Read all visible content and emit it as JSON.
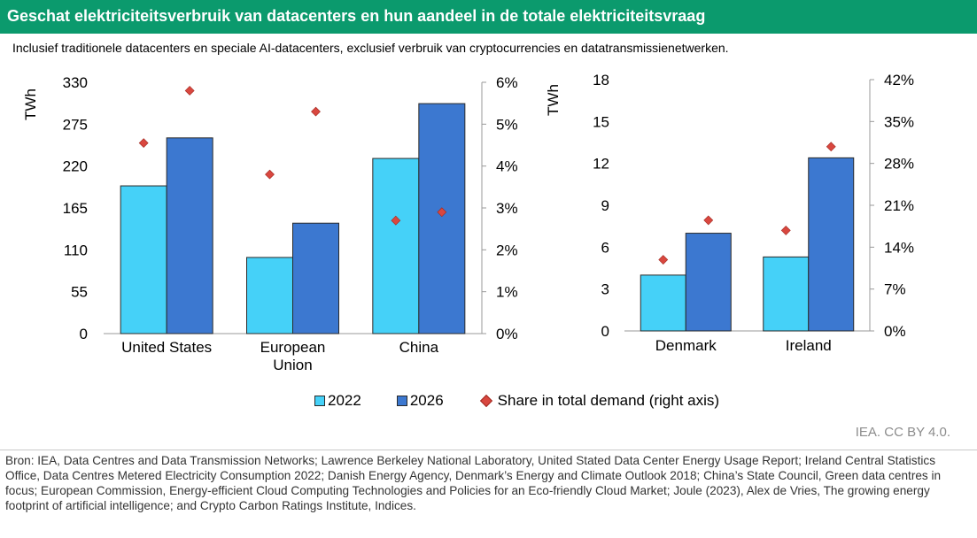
{
  "header": {
    "title": "Geschat elektriciteitsverbruik van datacenters en hun aandeel in de totale elektriciteitsvraag",
    "subtitle": "Inclusief traditionele datacenters en speciale AI-datacenters, exclusief verbruik van cryptocurrencies en datatransmissienetwerken."
  },
  "colors": {
    "bar2022": "#45d1f8",
    "bar2026": "#3c78d0",
    "share": "#d9473f",
    "title_bg": "#0b9a6d"
  },
  "chart_data": [
    {
      "type": "bar",
      "title": "",
      "ylabel": "TWh",
      "ylim": [
        0,
        330
      ],
      "yticks": [
        "0",
        "55",
        "110",
        "165",
        "220",
        "275",
        "330"
      ],
      "y2lim": [
        0,
        6
      ],
      "y2ticks": [
        "0%",
        "1%",
        "2%",
        "3%",
        "4%",
        "5%",
        "6%"
      ],
      "categories": [
        [
          "United States"
        ],
        [
          "European",
          "Union"
        ],
        [
          "China"
        ]
      ],
      "series": [
        {
          "name": "2022",
          "values": [
            194,
            100,
            230
          ]
        },
        {
          "name": "2026",
          "values": [
            257,
            145,
            302
          ]
        }
      ],
      "share": {
        "name": "Share in total demand (right axis)",
        "values_2022": [
          4.55,
          3.8,
          2.7
        ],
        "values_2026": [
          5.8,
          5.3,
          2.9
        ]
      }
    },
    {
      "type": "bar",
      "title": "",
      "ylabel": "TWh",
      "ylim": [
        0,
        18
      ],
      "yticks": [
        "0",
        "3",
        "6",
        "9",
        "12",
        "15",
        "18"
      ],
      "y2lim": [
        0,
        42
      ],
      "y2ticks": [
        "0%",
        "7%",
        "14%",
        "21%",
        "28%",
        "35%",
        "42%"
      ],
      "categories": [
        [
          "Denmark"
        ],
        [
          "Ireland"
        ]
      ],
      "series": [
        {
          "name": "2022",
          "values": [
            4.0,
            5.3
          ]
        },
        {
          "name": "2026",
          "values": [
            7.0,
            12.4
          ]
        }
      ],
      "share": {
        "name": "Share in total demand (right axis)",
        "values_2022": [
          11.9,
          16.8
        ],
        "values_2026": [
          18.5,
          30.8
        ]
      }
    }
  ],
  "legend": {
    "item_2022": "2022",
    "item_2026": "2026",
    "item_share": "Share in total demand (right axis)"
  },
  "watermark": "IEA. CC BY 4.0.",
  "source": "Bron: IEA, Data Centres and Data Transmission Networks; Lawrence Berkeley National Laboratory, United Stated Data Center Energy Usage Report; Ireland Central Statistics Office, Data Centres Metered Electricity Consumption 2022; Danish Energy Agency, Denmark’s Energy and Climate Outlook 2018; China’s State Council, Green data centres in focus; European Commission, Energy-efficient Cloud Computing Technologies and Policies for an Eco-friendly Cloud Market; Joule (2023), Alex de Vries, The growing energy footprint of artificial intelligence; and Crypto Carbon Ratings Institute, Indices."
}
